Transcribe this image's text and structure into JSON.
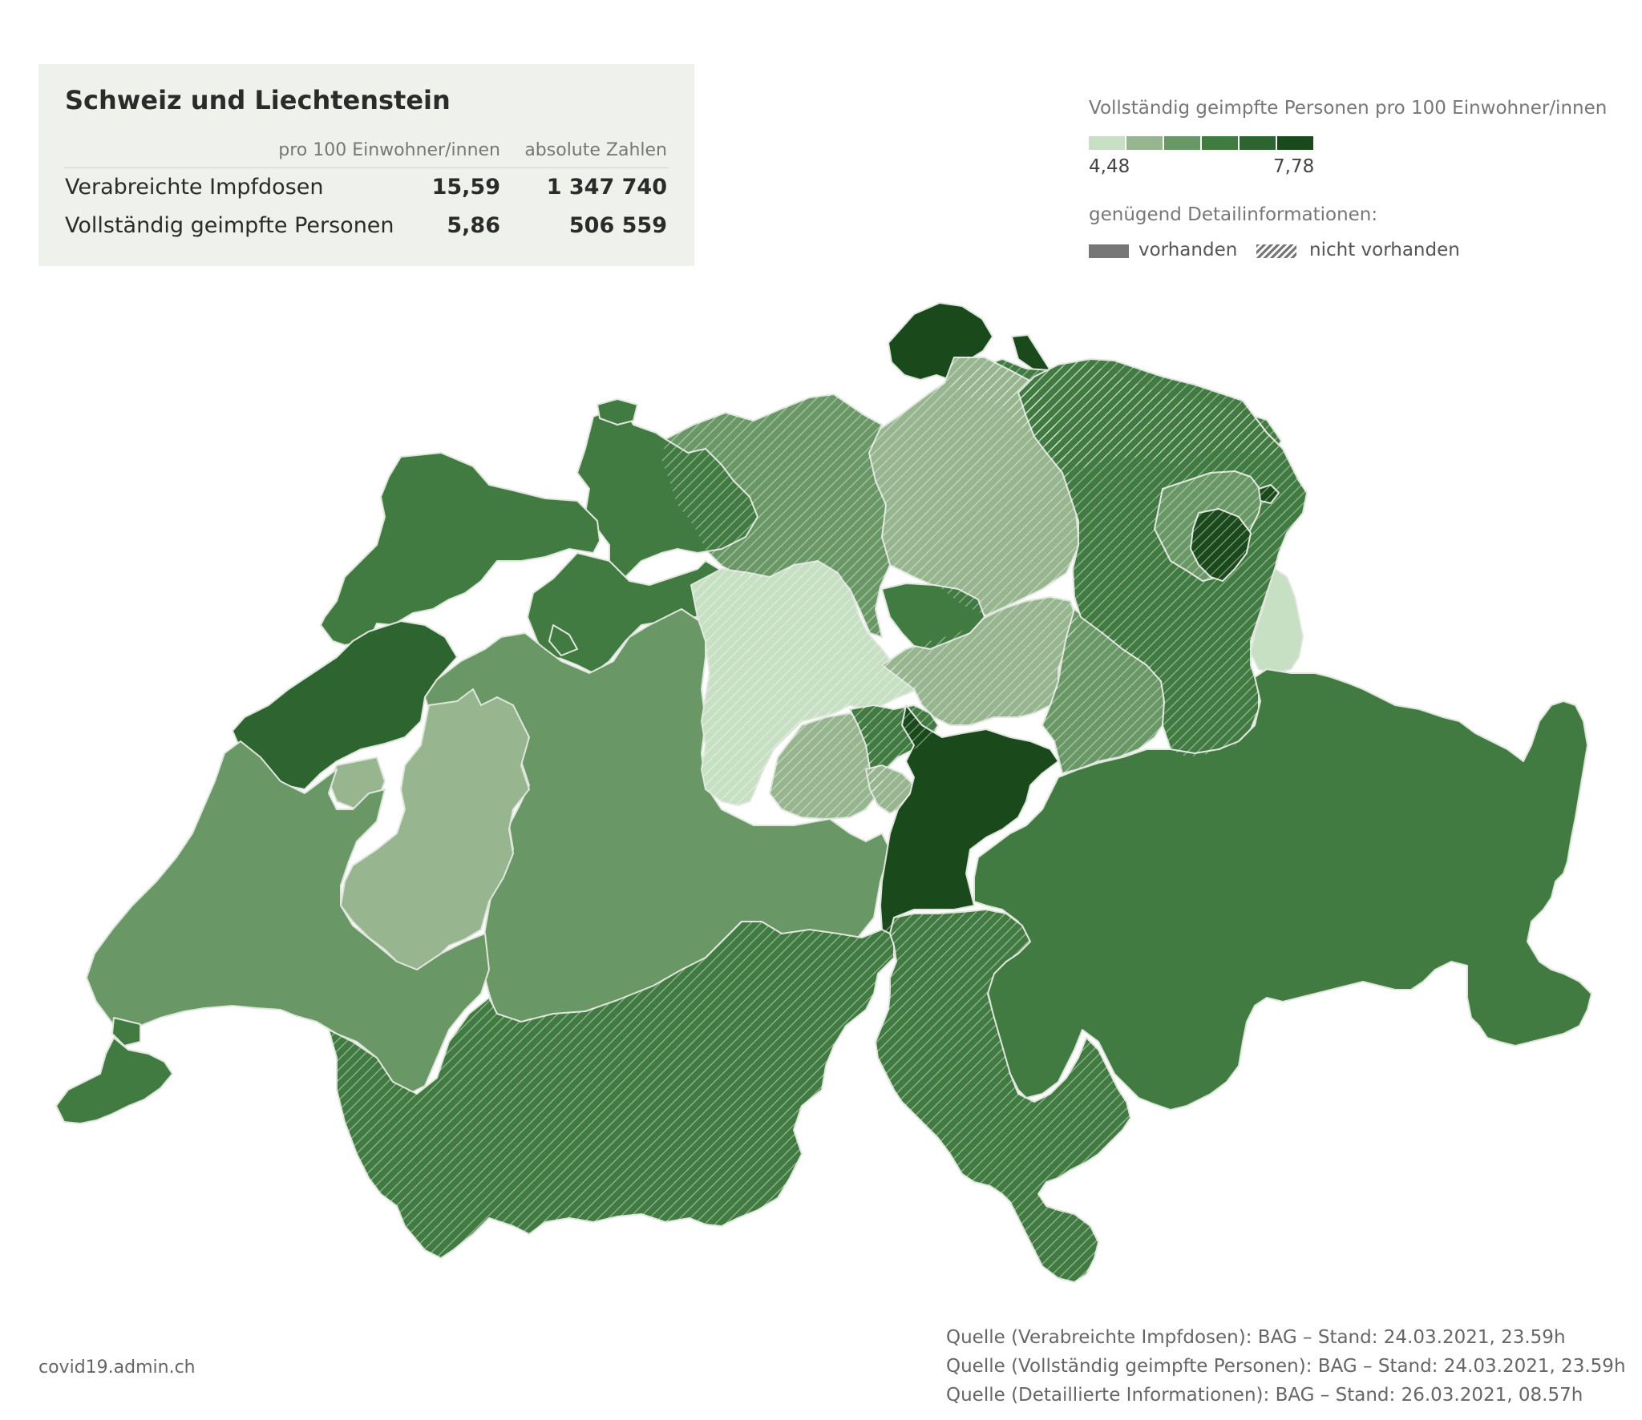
{
  "summary": {
    "title": "Schweiz und Liechtenstein",
    "col_per100": "pro 100 Einwohner/innen",
    "col_absolute": "absolute Zahlen",
    "rows": [
      {
        "label": "Verabreichte Impfdosen",
        "per100": "15,59",
        "absolute": "1 347 740"
      },
      {
        "label": "Vollständig geimpfte Personen",
        "per100": "5,86",
        "absolute": "506 559"
      }
    ]
  },
  "legend": {
    "title": "Vollständig geimpfte Personen pro 100 Einwohner/innen",
    "min": "4,48",
    "max": "7,78",
    "colors": [
      "#c7dfc3",
      "#97b690",
      "#699866",
      "#427b42",
      "#2e6430",
      "#1a4a1c"
    ],
    "detail_title": "genügend Detailinformationen:",
    "detail_available": "vorhanden",
    "detail_not_available": "nicht vorhanden"
  },
  "footer": {
    "site": "covid19.admin.ch",
    "sources": [
      "Quelle (Verabreichte Impfdosen): BAG – Stand: 24.03.2021, 23.59h",
      "Quelle (Vollständig geimpfte Personen): BAG – Stand: 24.03.2021, 23.59h",
      "Quelle (Detaillierte Informationen): BAG – Stand: 26.03.2021, 08.57h"
    ]
  },
  "map_regions": [
    {
      "id": "SH",
      "class": 6,
      "hatched": false
    },
    {
      "id": "TG",
      "class": 4,
      "hatched": true
    },
    {
      "id": "ZH",
      "class": 2,
      "hatched": true
    },
    {
      "id": "AG",
      "class": 3,
      "hatched": true
    },
    {
      "id": "BL",
      "class": 4,
      "hatched": false
    },
    {
      "id": "BS",
      "class": 4,
      "hatched": false
    },
    {
      "id": "JU",
      "class": 4,
      "hatched": false
    },
    {
      "id": "SO",
      "class": 4,
      "hatched": false
    },
    {
      "id": "NE",
      "class": 5,
      "hatched": false
    },
    {
      "id": "BE",
      "class": 3,
      "hatched": false
    },
    {
      "id": "FR",
      "class": 2,
      "hatched": false
    },
    {
      "id": "VD",
      "class": 3,
      "hatched": false
    },
    {
      "id": "GE",
      "class": 4,
      "hatched": false
    },
    {
      "id": "VS",
      "class": 4,
      "hatched": true
    },
    {
      "id": "LU",
      "class": 1,
      "hatched": true
    },
    {
      "id": "OW",
      "class": 2,
      "hatched": true
    },
    {
      "id": "NW",
      "class": 4,
      "hatched": true
    },
    {
      "id": "UR",
      "class": 6,
      "hatched": false
    },
    {
      "id": "SZ",
      "class": 2,
      "hatched": true
    },
    {
      "id": "ZG",
      "class": 4,
      "hatched": false
    },
    {
      "id": "GL",
      "class": 3,
      "hatched": true
    },
    {
      "id": "SG",
      "class": 4,
      "hatched": true
    },
    {
      "id": "AR",
      "class": 3,
      "hatched": false
    },
    {
      "id": "AI",
      "class": 6,
      "hatched": false
    },
    {
      "id": "FL",
      "class": 1,
      "hatched": false
    },
    {
      "id": "GR",
      "class": 4,
      "hatched": false
    },
    {
      "id": "TI",
      "class": 4,
      "hatched": true
    }
  ]
}
